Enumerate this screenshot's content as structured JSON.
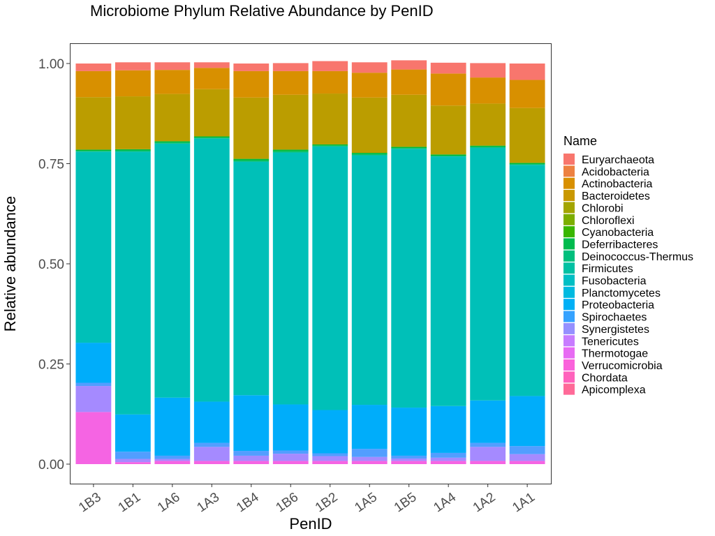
{
  "chart_data": {
    "type": "bar",
    "stacked": true,
    "title": "Microbiome Phylum Relative Abundance by PenID",
    "xlabel": "PenID",
    "ylabel": "Relative abundance",
    "ylim": [
      0,
      1
    ],
    "yticks": [
      "0.00",
      "0.25",
      "0.50",
      "0.75",
      "1.00"
    ],
    "grid": false,
    "legend_title": "Name",
    "legend_position": "right",
    "categories": [
      "1B3",
      "1B1",
      "1A6",
      "1A3",
      "1B4",
      "1B6",
      "1B2",
      "1A5",
      "1B5",
      "1A4",
      "1A2",
      "1A1"
    ],
    "series": [
      {
        "name": "Apicomplexa",
        "color": "#FF6C91",
        "values": [
          0,
          0,
          0,
          0,
          0,
          0,
          0,
          0,
          0,
          0,
          0,
          0
        ]
      },
      {
        "name": "Chordata",
        "color": "#FF62BC",
        "values": [
          0,
          0,
          0,
          0,
          0,
          0,
          0,
          0,
          0,
          0,
          0,
          0
        ]
      },
      {
        "name": "Verrucomicrobia",
        "color": "#F564E3",
        "values": [
          0.13,
          0.005,
          0.008,
          0.008,
          0.008,
          0.008,
          0.008,
          0.008,
          0.008,
          0.008,
          0.008,
          0.008
        ]
      },
      {
        "name": "Thermotogae",
        "color": "#E76BF3",
        "values": [
          0,
          0,
          0,
          0,
          0,
          0,
          0,
          0,
          0,
          0,
          0,
          0
        ]
      },
      {
        "name": "Tenericutes",
        "color": "#D177FF",
        "values": [
          0,
          0,
          0,
          0,
          0,
          0,
          0,
          0,
          0,
          0,
          0,
          0
        ]
      },
      {
        "name": "Synergistetes",
        "color": "#A58AFF",
        "values": [
          0.065,
          0.008,
          0.005,
          0.035,
          0.013,
          0.018,
          0.012,
          0.01,
          0.006,
          0.008,
          0.035,
          0.017
        ]
      },
      {
        "name": "Spirochaetes",
        "color": "#529EFF",
        "values": [
          0.008,
          0.018,
          0.008,
          0.01,
          0.012,
          0.008,
          0.007,
          0.02,
          0.007,
          0.012,
          0.01,
          0.02
        ]
      },
      {
        "name": "Proteobacteria",
        "color": "#00ADFA",
        "values": [
          0.1,
          0.093,
          0.145,
          0.103,
          0.139,
          0.115,
          0.108,
          0.11,
          0.12,
          0.117,
          0.106,
          0.125
        ]
      },
      {
        "name": "Planctomycetes",
        "color": "#00B5EE",
        "values": [
          0,
          0,
          0,
          0,
          0,
          0,
          0,
          0,
          0,
          0,
          0,
          0
        ]
      },
      {
        "name": "Fusobacteria",
        "color": "#00BCD6",
        "values": [
          0,
          0,
          0,
          0,
          0,
          0,
          0,
          0,
          0,
          0,
          0,
          0
        ]
      },
      {
        "name": "Firmicutes",
        "color": "#00C0B8",
        "values": [
          0.477,
          0.656,
          0.634,
          0.657,
          0.583,
          0.629,
          0.658,
          0.623,
          0.646,
          0.623,
          0.631,
          0.577
        ]
      },
      {
        "name": "Deinococcus-Thermus",
        "color": "#00C094",
        "values": [
          0,
          0,
          0,
          0,
          0,
          0,
          0,
          0,
          0,
          0,
          0,
          0
        ]
      },
      {
        "name": "Deferribacteres",
        "color": "#00BE6C",
        "values": [
          0.002,
          0.003,
          0.003,
          0.002,
          0.003,
          0.003,
          0.002,
          0.003,
          0.002,
          0.002,
          0.002,
          0.002
        ]
      },
      {
        "name": "Cyanobacteria",
        "color": "#00BA38",
        "values": [
          0.003,
          0.003,
          0.003,
          0.003,
          0.004,
          0.004,
          0.003,
          0.003,
          0.003,
          0.003,
          0.003,
          0.003
        ]
      },
      {
        "name": "Chloroflexi",
        "color": "#5BB300",
        "values": [
          0,
          0,
          0,
          0,
          0,
          0,
          0,
          0,
          0,
          0,
          0,
          0
        ]
      },
      {
        "name": "Chlorobi",
        "color": "#93AA00",
        "values": [
          0,
          0,
          0,
          0,
          0,
          0,
          0,
          0,
          0,
          0,
          0,
          0
        ]
      },
      {
        "name": "Bacteroidetes",
        "color": "#BB9D00",
        "values": [
          0.131,
          0.132,
          0.118,
          0.118,
          0.153,
          0.137,
          0.127,
          0.138,
          0.13,
          0.122,
          0.105,
          0.137
        ]
      },
      {
        "name": "Actinobacteria",
        "color": "#D89000",
        "values": [
          0.065,
          0.065,
          0.06,
          0.053,
          0.066,
          0.059,
          0.056,
          0.062,
          0.063,
          0.08,
          0.065,
          0.07
        ]
      },
      {
        "name": "Acidobacteria",
        "color": "#ED8141",
        "values": [
          0,
          0,
          0,
          0,
          0,
          0,
          0,
          0,
          0,
          0,
          0,
          0
        ]
      },
      {
        "name": "Euryarchaeota",
        "color": "#F8766D",
        "values": [
          0.019,
          0.02,
          0.019,
          0.014,
          0.019,
          0.02,
          0.025,
          0.026,
          0.023,
          0.027,
          0.036,
          0.041
        ]
      }
    ],
    "legend": [
      {
        "name": "Euryarchaeota",
        "color": "#F8766D"
      },
      {
        "name": "Acidobacteria",
        "color": "#ED8141"
      },
      {
        "name": "Actinobacteria",
        "color": "#D89000"
      },
      {
        "name": "Bacteroidetes",
        "color": "#C99800"
      },
      {
        "name": "Chlorobi",
        "color": "#A3A500"
      },
      {
        "name": "Chloroflexi",
        "color": "#7CAE00"
      },
      {
        "name": "Cyanobacteria",
        "color": "#39B600"
      },
      {
        "name": "Deferribacteres",
        "color": "#00BB4E"
      },
      {
        "name": "Deinococcus-Thermus",
        "color": "#00BF7D"
      },
      {
        "name": "Firmicutes",
        "color": "#00C1A3"
      },
      {
        "name": "Fusobacteria",
        "color": "#00BFC4"
      },
      {
        "name": "Planctomycetes",
        "color": "#00BAE0"
      },
      {
        "name": "Proteobacteria",
        "color": "#00B0F6"
      },
      {
        "name": "Spirochaetes",
        "color": "#35A2FF"
      },
      {
        "name": "Synergistetes",
        "color": "#9590FF"
      },
      {
        "name": "Tenericutes",
        "color": "#C77CFF"
      },
      {
        "name": "Thermotogae",
        "color": "#E76BF3"
      },
      {
        "name": "Verrucomicrobia",
        "color": "#FA62DB"
      },
      {
        "name": "Chordata",
        "color": "#FF62BC"
      },
      {
        "name": "Apicomplexa",
        "color": "#FF6A98"
      }
    ]
  }
}
